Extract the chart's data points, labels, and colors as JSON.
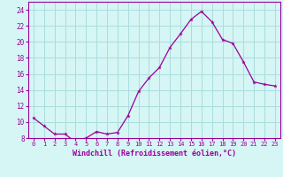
{
  "x": [
    0,
    1,
    2,
    3,
    4,
    5,
    6,
    7,
    8,
    9,
    10,
    11,
    12,
    13,
    14,
    15,
    16,
    17,
    18,
    19,
    20,
    21,
    22,
    23
  ],
  "y": [
    10.5,
    9.5,
    8.5,
    8.5,
    7.5,
    8.0,
    8.8,
    8.5,
    8.7,
    10.8,
    13.8,
    15.5,
    16.8,
    19.3,
    21.0,
    22.8,
    23.8,
    22.5,
    20.3,
    19.8,
    17.5,
    15.0,
    14.7,
    14.5
  ],
  "line_color": "#990099",
  "marker": "*",
  "marker_size": 3.5,
  "bg_color": "#d6f5f5",
  "grid_color": "#aadddd",
  "xlabel": "Windchill (Refroidissement éolien,°C)",
  "xlabel_color": "#990099",
  "tick_color": "#990099",
  "ylim": [
    8,
    25
  ],
  "yticks": [
    8,
    10,
    12,
    14,
    16,
    18,
    20,
    22,
    24
  ],
  "xticks": [
    0,
    1,
    2,
    3,
    4,
    5,
    6,
    7,
    8,
    9,
    10,
    11,
    12,
    13,
    14,
    15,
    16,
    17,
    18,
    19,
    20,
    21,
    22,
    23
  ],
  "spine_color": "#990099",
  "xlabel_fontsize": 6.0,
  "xtick_fontsize": 5.0,
  "ytick_fontsize": 5.5
}
